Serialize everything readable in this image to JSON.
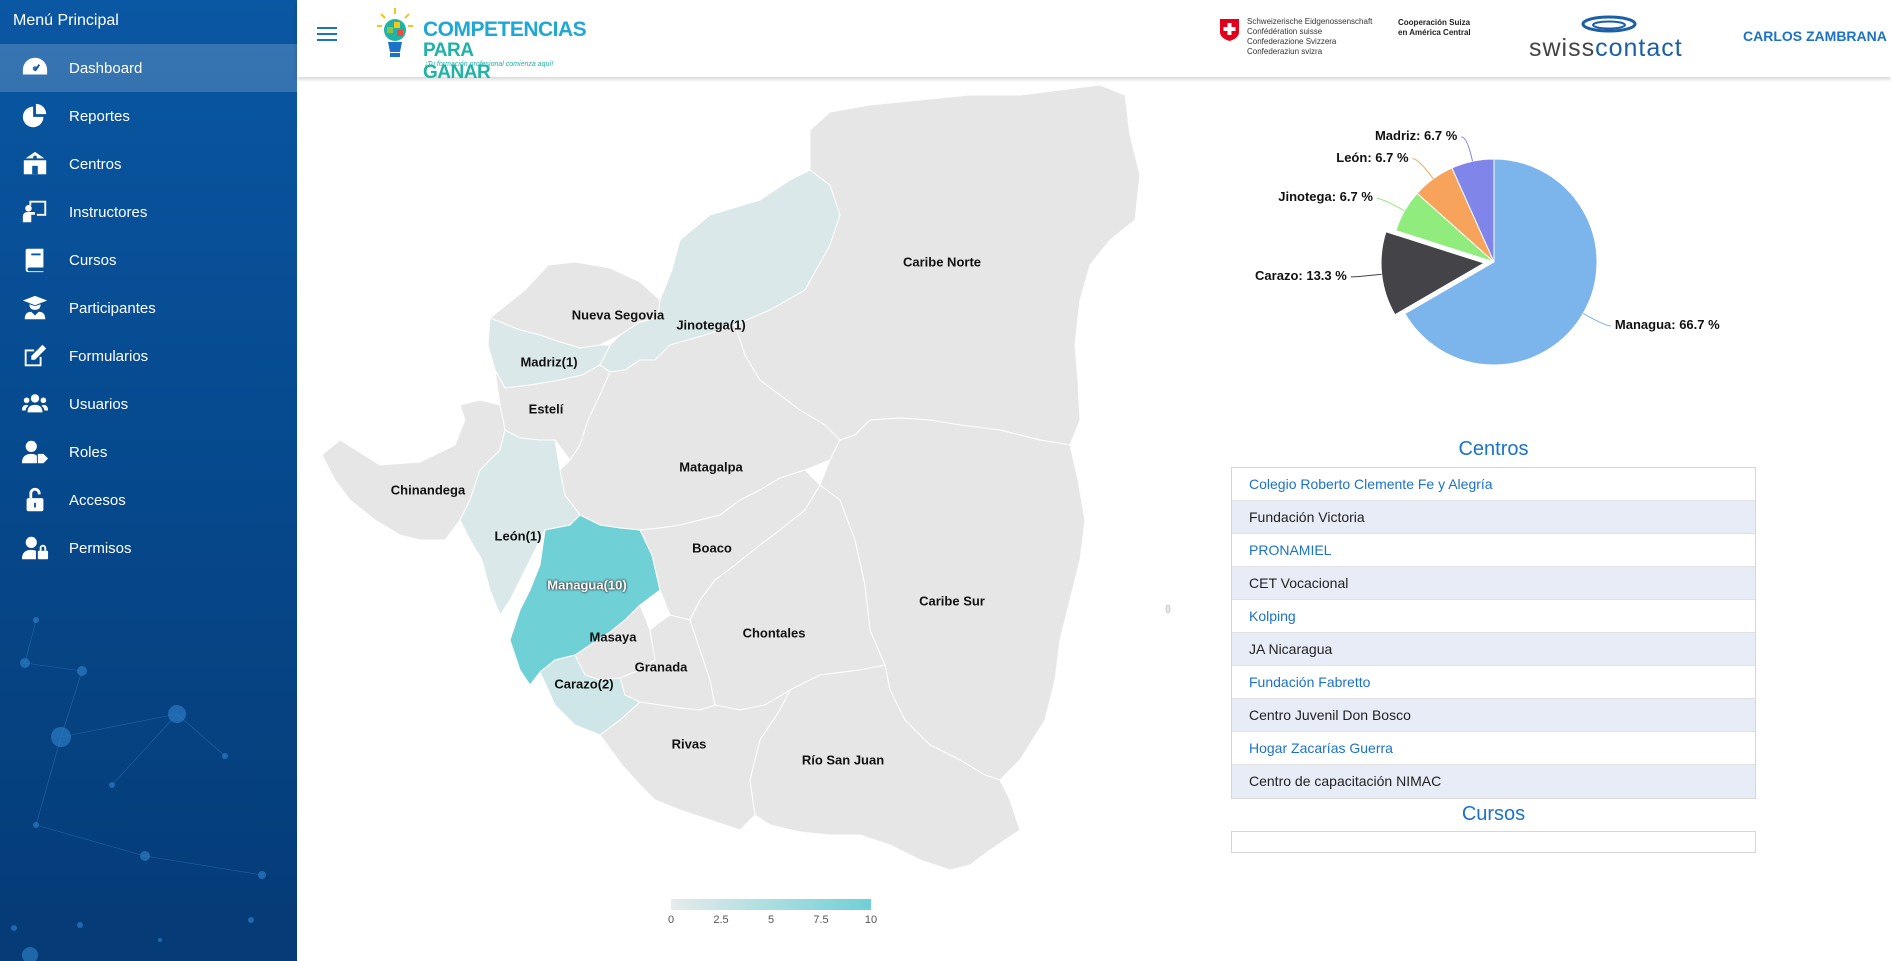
{
  "sidebar": {
    "title": "Menú Principal",
    "items": [
      {
        "label": "Dashboard",
        "icon": "dashboard-icon"
      },
      {
        "label": "Reportes",
        "icon": "pie-chart-icon"
      },
      {
        "label": "Centros",
        "icon": "school-icon"
      },
      {
        "label": "Instructores",
        "icon": "chalkboard-teacher-icon"
      },
      {
        "label": "Cursos",
        "icon": "book-icon"
      },
      {
        "label": "Participantes",
        "icon": "graduate-icon"
      },
      {
        "label": "Formularios",
        "icon": "edit-icon"
      },
      {
        "label": "Usuarios",
        "icon": "users-icon"
      },
      {
        "label": "Roles",
        "icon": "user-tag-icon"
      },
      {
        "label": "Accesos",
        "icon": "unlock-icon"
      },
      {
        "label": "Permisos",
        "icon": "user-lock-icon"
      }
    ]
  },
  "header": {
    "logo_line1": "COMPETENCIAS",
    "logo_line2": "PARA GANAR",
    "logo_tagline": "¡Tu formación profesional comienza aquí!",
    "swiss_lines": [
      "Schweizerische Eidgenossenschaft",
      "Confédération suisse",
      "Confederazione Svizzera",
      "Confederaziun svizra"
    ],
    "coop_lines": [
      "Cooperación Suiza",
      "en América Central"
    ],
    "brand_swiss": "swiss",
    "brand_contact": "contact",
    "user_name": "CARLOS ZAMBRANA"
  },
  "map": {
    "regions": [
      {
        "name": "Nueva Segovia",
        "label": "Nueva Segovia",
        "count": 0
      },
      {
        "name": "Jinotega",
        "label": "Jinotega(1)",
        "count": 1
      },
      {
        "name": "Madriz",
        "label": "Madriz(1)",
        "count": 1
      },
      {
        "name": "Estelí",
        "label": "Estelí",
        "count": 0
      },
      {
        "name": "Chinandega",
        "label": "Chinandega",
        "count": 0
      },
      {
        "name": "León",
        "label": "León(1)",
        "count": 1
      },
      {
        "name": "Matagalpa",
        "label": "Matagalpa",
        "count": 0
      },
      {
        "name": "Caribe Norte",
        "label": "Caribe Norte",
        "count": 0
      },
      {
        "name": "Managua",
        "label": "Managua(10)",
        "count": 10
      },
      {
        "name": "Boaco",
        "label": "Boaco",
        "count": 0
      },
      {
        "name": "Masaya",
        "label": "Masaya",
        "count": 0
      },
      {
        "name": "Granada",
        "label": "Granada",
        "count": 0
      },
      {
        "name": "Carazo",
        "label": "Carazo(2)",
        "count": 2
      },
      {
        "name": "Chontales",
        "label": "Chontales",
        "count": 0
      },
      {
        "name": "Caribe Sur",
        "label": "Caribe Sur",
        "count": 0
      },
      {
        "name": "Rivas",
        "label": "Rivas",
        "count": 0
      },
      {
        "name": "Río San Juan",
        "label": "Río San Juan",
        "count": 0
      }
    ],
    "legend": {
      "ticks": [
        "0",
        "2.5",
        "5",
        "7.5",
        "10"
      ],
      "color_min": "#e6ebeb",
      "color_max": "#6fd0d6"
    }
  },
  "chart_data": {
    "type": "pie",
    "slices": [
      {
        "name": "Managua",
        "value": 66.7,
        "label": "Managua: 66.7 %",
        "color": "#7cb5ec"
      },
      {
        "name": "Carazo",
        "value": 13.3,
        "label": "Carazo: 13.3 %",
        "color": "#434348"
      },
      {
        "name": "Jinotega",
        "value": 6.7,
        "label": "Jinotega: 6.7 %",
        "color": "#90ed7d"
      },
      {
        "name": "León",
        "value": 6.7,
        "label": "León: 6.7 %",
        "color": "#f7a35c"
      },
      {
        "name": "Madriz",
        "value": 6.7,
        "label": "Madriz: 6.7 %",
        "color": "#8085e9"
      }
    ]
  },
  "centros": {
    "title": "Centros",
    "items": [
      "Colegio Roberto Clemente Fe y Alegría",
      "Fundación Victoria",
      "PRONAMIEL",
      "CET Vocacional",
      "Kolping",
      "JA Nicaragua",
      "Fundación Fabretto",
      "Centro Juvenil Don Bosco",
      "Hogar Zacarías Guerra",
      "Centro de capacitación NIMAC"
    ]
  },
  "cursos": {
    "title": "Cursos",
    "items": []
  }
}
